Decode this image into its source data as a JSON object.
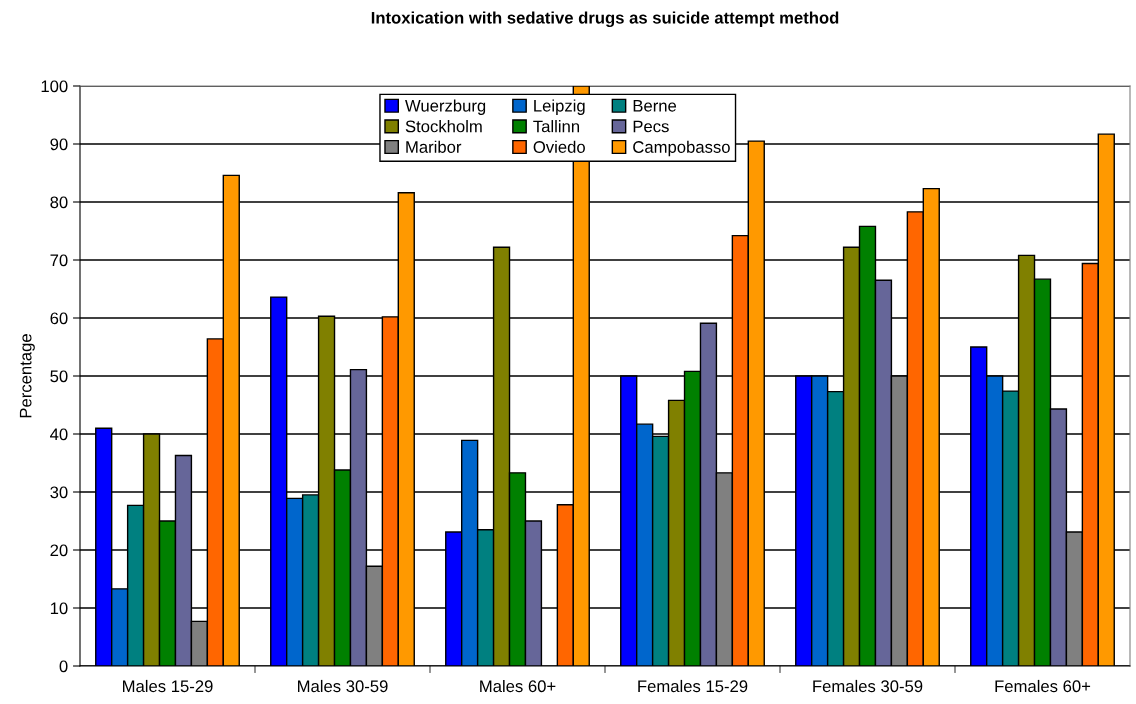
{
  "chart_data": {
    "type": "bar",
    "title": "Intoxication with sedative drugs as suicide attempt method",
    "ylabel": "Percentage",
    "categories": [
      "Males 15-29",
      "Males 30-59",
      "Males 60+",
      "Females 15-29",
      "Females 30-59",
      "Females 60+"
    ],
    "series": [
      {
        "name": "Wuerzburg",
        "color": "#0000ff",
        "values": [
          41,
          63.6,
          23.1,
          50,
          50,
          55
        ]
      },
      {
        "name": "Leipzig",
        "color": "#0066cc",
        "values": [
          13.3,
          28.9,
          38.9,
          41.7,
          50,
          50
        ]
      },
      {
        "name": "Berne",
        "color": "#008080",
        "values": [
          27.7,
          29.5,
          23.5,
          39.6,
          47.3,
          47.4
        ]
      },
      {
        "name": "Stockholm",
        "color": "#808000",
        "values": [
          40,
          60.3,
          72.2,
          45.8,
          72.2,
          70.8
        ]
      },
      {
        "name": "Tallinn",
        "color": "#008000",
        "values": [
          25,
          33.8,
          33.3,
          50.8,
          75.8,
          66.7
        ]
      },
      {
        "name": "Pecs",
        "color": "#666699",
        "values": [
          36.3,
          51.1,
          25,
          59.1,
          66.5,
          44.3
        ]
      },
      {
        "name": "Maribor",
        "color": "#808080",
        "values": [
          7.7,
          17.2,
          null,
          33.3,
          50,
          23.1
        ]
      },
      {
        "name": "Oviedo",
        "color": "#ff6600",
        "values": [
          56.4,
          60.2,
          27.8,
          74.2,
          78.3,
          69.4
        ]
      },
      {
        "name": "Campobasso",
        "color": "#ff9900",
        "values": [
          84.6,
          81.6,
          100,
          90.5,
          82.3,
          91.7
        ]
      }
    ],
    "ylim": [
      0,
      100
    ],
    "yticks": [
      0,
      10,
      20,
      30,
      40,
      50,
      60,
      70,
      80,
      90,
      100
    ],
    "grid": "y",
    "legend": "top"
  }
}
